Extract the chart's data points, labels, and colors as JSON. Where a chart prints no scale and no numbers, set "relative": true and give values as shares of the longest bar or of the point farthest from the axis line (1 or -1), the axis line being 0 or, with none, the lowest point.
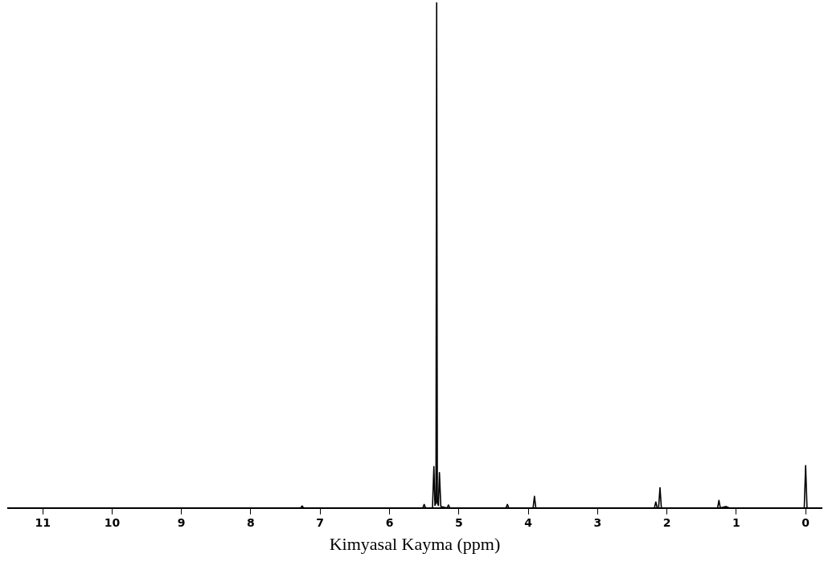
{
  "chart_data": {
    "type": "line",
    "xlabel": "Kimyasal Kayma (ppm)",
    "relative": true,
    "xlim": [
      11.5,
      -0.23
    ],
    "xticks": [
      11,
      10,
      9,
      8,
      7,
      6,
      5,
      4,
      3,
      2,
      1,
      0
    ],
    "grid": false,
    "legend": false,
    "marker": "none",
    "line_style": "solid",
    "tick_labels": "x",
    "series": [
      {
        "color": "#000000",
        "x": [
          11.5,
          7.28,
          7.26,
          7.24,
          5.52,
          5.5,
          5.48,
          5.38,
          5.36,
          5.345,
          5.33,
          5.32,
          5.31,
          5.295,
          5.28,
          5.26,
          5.17,
          5.15,
          5.13,
          4.32,
          4.3,
          4.28,
          3.93,
          3.91,
          3.89,
          2.18,
          2.16,
          2.14,
          2.12,
          2.1,
          2.08,
          1.27,
          1.25,
          1.23,
          1.15,
          1.1,
          0.02,
          0,
          -0.02,
          -0.23
        ],
        "values": [
          0,
          0,
          0.004,
          0,
          0,
          0.007,
          0,
          0,
          0.082,
          0.005,
          0.01,
          1,
          0.01,
          0.005,
          0.07,
          0.003,
          0,
          0.006,
          0,
          0,
          0.007,
          0,
          0,
          0.023,
          0,
          0,
          0.012,
          0,
          0,
          0.04,
          0,
          0,
          0.015,
          0,
          0.003,
          0,
          0,
          0.084,
          0,
          0
        ]
      }
    ]
  }
}
